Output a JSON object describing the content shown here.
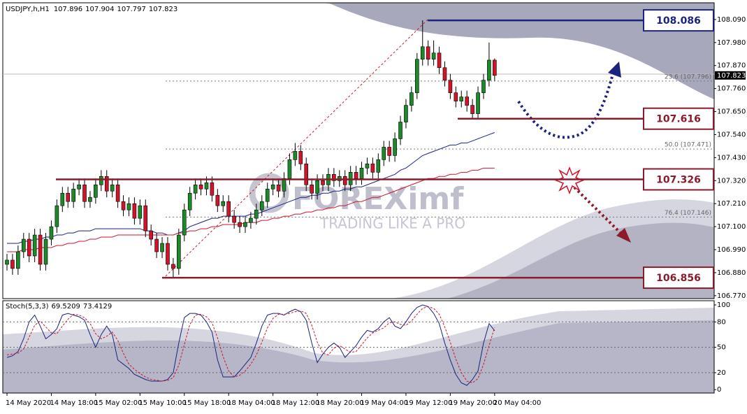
{
  "chart_data": [
    {
      "type": "candlestick",
      "symbol": "USDJPY,h,H1",
      "categories": [
        "14 May 2020",
        null,
        null,
        null,
        null,
        null,
        null,
        null,
        "14 May 18:00",
        null,
        null,
        null,
        null,
        null,
        null,
        null,
        "15 May 02:00",
        null,
        null,
        null,
        null,
        null,
        null,
        null,
        "15 May 10:00",
        null,
        null,
        null,
        null,
        null,
        null,
        null,
        "15 May 18:00",
        null,
        null,
        null,
        null,
        null,
        null,
        null,
        "18 May 04:00",
        null,
        null,
        null,
        null,
        null,
        null,
        null,
        "18 May 12:00",
        null,
        null,
        null,
        null,
        null,
        null,
        null,
        "18 May 20:00",
        null,
        null,
        null,
        null,
        null,
        null,
        null,
        "19 May 04:00",
        null,
        null,
        null,
        null,
        null,
        null,
        null,
        "19 May 12:00",
        null,
        null,
        null,
        null,
        null,
        null,
        null,
        "19 May 20:00",
        null,
        null,
        null,
        null,
        null,
        null,
        null,
        "20 May 04:00"
      ],
      "open": [
        106.92,
        106.94,
        106.9,
        106.98,
        107.04,
        106.96,
        107.06,
        106.92,
        107.04,
        107.1,
        107.2,
        107.26,
        107.22,
        107.28,
        107.3,
        107.22,
        107.24,
        107.3,
        107.34,
        107.27,
        107.3,
        107.22,
        107.18,
        107.21,
        107.14,
        107.2,
        107.08,
        107.04,
        106.98,
        107.02,
        106.92,
        106.9,
        107.06,
        107.18,
        107.26,
        107.3,
        107.28,
        107.31,
        107.25,
        107.2,
        107.22,
        107.15,
        107.12,
        107.1,
        107.12,
        107.14,
        107.18,
        107.22,
        107.28,
        107.3,
        107.27,
        107.33,
        107.42,
        107.46,
        107.4,
        107.3,
        107.26,
        107.32,
        107.3,
        107.35,
        107.32,
        107.34,
        107.3,
        107.36,
        107.33,
        107.38,
        107.4,
        107.36,
        107.42,
        107.48,
        107.44,
        107.52,
        107.6,
        107.68,
        107.74,
        107.9,
        107.96,
        107.9,
        107.93,
        107.86,
        107.8,
        107.74,
        107.7,
        107.72,
        107.68,
        107.64,
        107.74,
        107.8,
        107.896
      ],
      "high": [
        106.97,
        106.97,
        107.01,
        107.07,
        107.07,
        107.09,
        107.09,
        107.07,
        107.13,
        107.23,
        107.29,
        107.29,
        107.31,
        107.33,
        107.33,
        107.27,
        107.33,
        107.37,
        107.37,
        107.33,
        107.33,
        107.25,
        107.24,
        107.24,
        107.23,
        107.23,
        107.11,
        107.07,
        107.05,
        107.05,
        106.95,
        107.09,
        107.21,
        107.29,
        107.33,
        107.33,
        107.34,
        107.34,
        107.28,
        107.25,
        107.25,
        107.18,
        107.15,
        107.15,
        107.17,
        107.21,
        107.25,
        107.31,
        107.33,
        107.33,
        107.36,
        107.45,
        107.5,
        107.49,
        107.43,
        107.33,
        107.35,
        107.35,
        107.38,
        107.38,
        107.37,
        107.37,
        107.39,
        107.39,
        107.41,
        107.43,
        107.43,
        107.45,
        107.51,
        107.51,
        107.55,
        107.63,
        107.71,
        107.77,
        107.93,
        108.086,
        107.99,
        107.99,
        107.96,
        107.89,
        107.83,
        107.77,
        107.75,
        107.75,
        107.71,
        107.77,
        107.83,
        107.98,
        107.904
      ],
      "low": [
        106.89,
        106.87,
        106.87,
        106.95,
        106.93,
        106.93,
        106.89,
        106.89,
        107.01,
        107.07,
        107.17,
        107.19,
        107.19,
        107.25,
        107.19,
        107.19,
        107.21,
        107.27,
        107.24,
        107.24,
        107.19,
        107.15,
        107.15,
        107.11,
        107.11,
        107.05,
        107.01,
        106.95,
        106.95,
        106.89,
        106.856,
        106.87,
        107.03,
        107.15,
        107.23,
        107.25,
        107.25,
        107.22,
        107.17,
        107.17,
        107.12,
        107.09,
        107.07,
        107.07,
        107.09,
        107.11,
        107.15,
        107.19,
        107.25,
        107.24,
        107.24,
        107.3,
        107.39,
        107.37,
        107.27,
        107.23,
        107.23,
        107.27,
        107.27,
        107.29,
        107.29,
        107.27,
        107.27,
        107.3,
        107.3,
        107.35,
        107.33,
        107.33,
        107.39,
        107.41,
        107.41,
        107.49,
        107.57,
        107.65,
        107.71,
        107.87,
        107.87,
        107.87,
        107.83,
        107.77,
        107.71,
        107.67,
        107.67,
        107.65,
        107.616,
        107.62,
        107.71,
        107.77,
        107.797
      ],
      "close": [
        106.94,
        106.9,
        106.98,
        107.04,
        106.96,
        107.06,
        106.92,
        107.04,
        107.1,
        107.2,
        107.26,
        107.22,
        107.28,
        107.3,
        107.22,
        107.24,
        107.3,
        107.34,
        107.27,
        107.3,
        107.22,
        107.18,
        107.21,
        107.14,
        107.2,
        107.08,
        107.04,
        106.98,
        107.02,
        106.92,
        106.9,
        107.06,
        107.18,
        107.26,
        107.3,
        107.28,
        107.31,
        107.25,
        107.2,
        107.22,
        107.15,
        107.12,
        107.1,
        107.12,
        107.14,
        107.18,
        107.22,
        107.28,
        107.3,
        107.27,
        107.33,
        107.42,
        107.46,
        107.4,
        107.3,
        107.26,
        107.32,
        107.3,
        107.35,
        107.32,
        107.34,
        107.3,
        107.36,
        107.33,
        107.38,
        107.4,
        107.36,
        107.42,
        107.48,
        107.44,
        107.52,
        107.6,
        107.68,
        107.74,
        107.9,
        107.96,
        107.9,
        107.93,
        107.86,
        107.8,
        107.74,
        107.7,
        107.72,
        107.68,
        107.64,
        107.74,
        107.8,
        107.896,
        107.823
      ],
      "up_color": "#1d8a2a",
      "down_color": "#d0142c",
      "ylim": [
        106.756,
        108.17
      ],
      "yticks": [
        {
          "value": 108.09,
          "label": "108.090"
        },
        {
          "value": 107.98,
          "label": "107.980"
        },
        {
          "value": 107.87,
          "label": "107.870"
        },
        {
          "value": 107.76,
          "label": "107.760"
        },
        {
          "value": 107.65,
          "label": "107.650"
        },
        {
          "value": 107.54,
          "label": "107.540"
        },
        {
          "value": 107.43,
          "label": "107.430"
        },
        {
          "value": 107.32,
          "label": "107.320"
        },
        {
          "value": 107.21,
          "label": "107.210"
        },
        {
          "value": 107.1,
          "label": "107.100"
        },
        {
          "value": 106.99,
          "label": "106.990"
        },
        {
          "value": 106.88,
          "label": "106.880"
        },
        {
          "value": 106.77,
          "label": "106.770"
        }
      ],
      "series": [
        {
          "color": "#1a237e",
          "values": [
            107.02,
            107.02,
            107.02,
            107.03,
            107.03,
            107.04,
            107.04,
            107.05,
            107.05,
            107.06,
            107.06,
            107.07,
            107.07,
            107.08,
            107.08,
            107.08,
            107.09,
            107.09,
            107.09,
            107.09,
            107.09,
            107.09,
            107.09,
            107.09,
            107.09,
            107.08,
            107.08,
            107.07,
            107.07,
            107.06,
            107.06,
            107.07,
            107.08,
            107.1,
            107.11,
            107.12,
            107.13,
            107.14,
            107.14,
            107.15,
            107.15,
            107.15,
            107.15,
            107.15,
            107.16,
            107.16,
            107.17,
            107.18,
            107.19,
            107.2,
            107.21,
            107.22,
            107.23,
            107.24,
            107.24,
            107.25,
            107.25,
            107.26,
            107.26,
            107.27,
            107.27,
            107.28,
            107.28,
            107.29,
            107.29,
            107.3,
            107.31,
            107.32,
            107.33,
            107.34,
            107.35,
            107.37,
            107.38,
            107.4,
            107.42,
            107.44,
            107.45,
            107.46,
            107.47,
            107.48,
            107.49,
            107.49,
            107.5,
            107.5,
            107.51,
            107.52,
            107.53,
            107.54,
            107.55
          ]
        },
        {
          "color": "#d0142c",
          "values": [
            106.98,
            106.98,
            106.98,
            106.99,
            106.99,
            106.99,
            107.0,
            107.0,
            107.0,
            107.01,
            107.01,
            107.02,
            107.02,
            107.03,
            107.03,
            107.04,
            107.04,
            107.05,
            107.05,
            107.05,
            107.06,
            107.06,
            107.06,
            107.06,
            107.06,
            107.06,
            107.06,
            107.06,
            107.06,
            107.06,
            107.06,
            107.07,
            107.07,
            107.08,
            107.08,
            107.09,
            107.09,
            107.1,
            107.1,
            107.11,
            107.11,
            107.11,
            107.11,
            107.12,
            107.12,
            107.12,
            107.13,
            107.13,
            107.14,
            107.14,
            107.15,
            107.15,
            107.16,
            107.16,
            107.17,
            107.17,
            107.18,
            107.18,
            107.19,
            107.19,
            107.2,
            107.2,
            107.21,
            107.22,
            107.22,
            107.23,
            107.24,
            107.24,
            107.25,
            107.26,
            107.27,
            107.28,
            107.29,
            107.3,
            107.31,
            107.32,
            107.33,
            107.33,
            107.34,
            107.34,
            107.35,
            107.35,
            107.36,
            107.36,
            107.37,
            107.37,
            107.38,
            107.38,
            107.38
          ]
        }
      ],
      "levels": [
        {
          "value": 108.086,
          "color": "#1a237e"
        },
        {
          "value": 107.616,
          "color": "#8b1a2b"
        },
        {
          "value": 107.326,
          "color": "#8b1a2b"
        },
        {
          "value": 106.856,
          "color": "#8b1a2b"
        }
      ],
      "fib_labels": [
        {
          "value": 107.796,
          "label": "23.6 (107.796)"
        },
        {
          "value": 107.471,
          "label": "50.0 (107.471)"
        },
        {
          "value": 107.146,
          "label": "76.4 (107.146)"
        }
      ],
      "watermark": {
        "brand": "FOREXimf",
        "slogan": "TRADING LIKE A PRO"
      }
    },
    {
      "type": "line",
      "title": "Stoch(5,3,3)",
      "ylim": [
        -4,
        105
      ],
      "yticks": [
        100,
        80,
        50,
        20,
        0
      ],
      "series": [
        {
          "color": "#1a237e",
          "values": [
            38,
            40,
            45,
            60,
            80,
            88,
            75,
            60,
            65,
            72,
            88,
            90,
            88,
            86,
            82,
            65,
            50,
            65,
            75,
            65,
            35,
            30,
            25,
            18,
            15,
            12,
            10,
            10,
            10,
            12,
            20,
            55,
            85,
            90,
            90,
            88,
            80,
            68,
            35,
            15,
            15,
            15,
            22,
            30,
            38,
            55,
            75,
            88,
            90,
            90,
            88,
            92,
            95,
            92,
            82,
            55,
            32,
            42,
            50,
            55,
            50,
            38,
            45,
            52,
            62,
            70,
            68,
            72,
            80,
            85,
            75,
            72,
            80,
            90,
            97,
            100,
            98,
            90,
            78,
            55,
            35,
            18,
            8,
            5,
            12,
            22,
            55,
            78,
            69.5209
          ]
        },
        {
          "color": "#d0142c",
          "dashed": true,
          "values": [
            41,
            42,
            43,
            48,
            62,
            76,
            81,
            74,
            67,
            66,
            75,
            83,
            89,
            88,
            85,
            78,
            66,
            60,
            63,
            68,
            58,
            43,
            30,
            24,
            19,
            15,
            12,
            11,
            10,
            11,
            14,
            29,
            53,
            77,
            88,
            89,
            86,
            79,
            61,
            39,
            22,
            15,
            17,
            22,
            30,
            41,
            56,
            73,
            84,
            89,
            89,
            90,
            92,
            93,
            90,
            76,
            56,
            43,
            41,
            49,
            52,
            48,
            44,
            45,
            53,
            61,
            67,
            70,
            73,
            79,
            80,
            77,
            76,
            81,
            89,
            96,
            98,
            96,
            89,
            74,
            56,
            36,
            20,
            10,
            8,
            13,
            30,
            52,
            73.4129
          ]
        }
      ]
    }
  ]
}
